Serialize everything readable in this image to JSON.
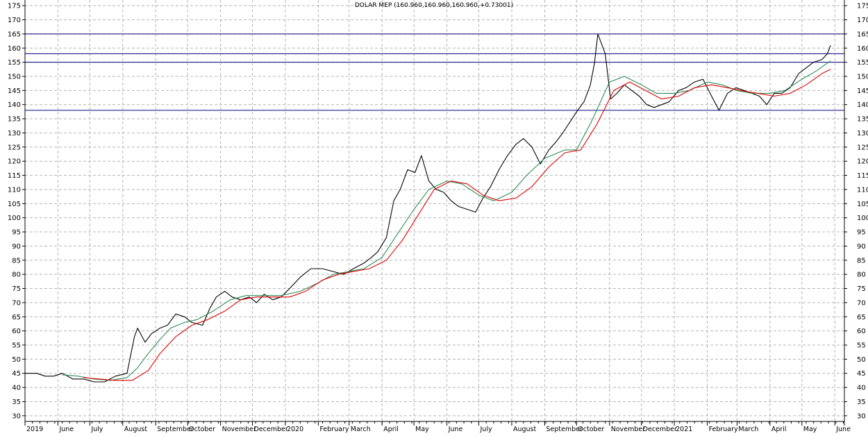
{
  "chart_data": {
    "type": "line",
    "title": "DOLAR MEP (160.960,160.960,160.960,+0.73001)",
    "ylim": [
      28,
      177
    ],
    "y_ticks": [
      30,
      35,
      40,
      45,
      50,
      55,
      60,
      65,
      70,
      75,
      80,
      85,
      90,
      95,
      100,
      105,
      110,
      115,
      120,
      125,
      130,
      135,
      140,
      145,
      150,
      155,
      160,
      165,
      170,
      175
    ],
    "x_range": [
      "2019-05-01",
      "2021-06-10"
    ],
    "grid": true,
    "x_ticks": [
      {
        "date": "2019-05-01",
        "label": "2019"
      },
      {
        "date": "2019-06-01",
        "label": "June"
      },
      {
        "date": "2019-07-01",
        "label": "July"
      },
      {
        "date": "2019-08-01",
        "label": "August"
      },
      {
        "date": "2019-09-01",
        "label": "September"
      },
      {
        "date": "2019-10-01",
        "label": "October"
      },
      {
        "date": "2019-11-01",
        "label": "November"
      },
      {
        "date": "2019-12-01",
        "label": "December"
      },
      {
        "date": "2020-01-01",
        "label": "2020"
      },
      {
        "date": "2020-02-01",
        "label": "February"
      },
      {
        "date": "2020-03-01",
        "label": "March"
      },
      {
        "date": "2020-04-01",
        "label": "April"
      },
      {
        "date": "2020-05-01",
        "label": "May"
      },
      {
        "date": "2020-06-01",
        "label": "June"
      },
      {
        "date": "2020-07-01",
        "label": "July"
      },
      {
        "date": "2020-08-01",
        "label": "August"
      },
      {
        "date": "2020-09-01",
        "label": "September"
      },
      {
        "date": "2020-10-01",
        "label": "October"
      },
      {
        "date": "2020-11-01",
        "label": "November"
      },
      {
        "date": "2020-12-01",
        "label": "December"
      },
      {
        "date": "2021-01-01",
        "label": "2021"
      },
      {
        "date": "2021-02-01",
        "label": "February"
      },
      {
        "date": "2021-03-01",
        "label": "March"
      },
      {
        "date": "2021-04-01",
        "label": "April"
      },
      {
        "date": "2021-05-01",
        "label": "May"
      },
      {
        "date": "2021-06-01",
        "label": "June"
      }
    ],
    "hlines": [
      {
        "value": 165,
        "color": "#000080"
      },
      {
        "value": 158,
        "color": "#000080"
      },
      {
        "value": 155,
        "color": "#000080"
      },
      {
        "value": 138,
        "color": "#000080"
      }
    ],
    "series": [
      {
        "color": "#000000",
        "x": [
          "2019-05-01",
          "2019-05-12",
          "2019-05-20",
          "2019-05-28",
          "2019-06-05",
          "2019-06-15",
          "2019-06-25",
          "2019-07-05",
          "2019-07-15",
          "2019-07-25",
          "2019-08-05",
          "2019-08-12",
          "2019-08-15",
          "2019-08-22",
          "2019-08-28",
          "2019-09-05",
          "2019-09-12",
          "2019-09-20",
          "2019-09-28",
          "2019-10-05",
          "2019-10-15",
          "2019-10-22",
          "2019-10-28",
          "2019-11-05",
          "2019-11-12",
          "2019-11-20",
          "2019-11-28",
          "2019-12-05",
          "2019-12-12",
          "2019-12-20",
          "2019-12-28",
          "2020-01-05",
          "2020-01-15",
          "2020-01-25",
          "2020-02-05",
          "2020-02-15",
          "2020-02-25",
          "2020-03-05",
          "2020-03-15",
          "2020-03-22",
          "2020-03-28",
          "2020-04-05",
          "2020-04-12",
          "2020-04-18",
          "2020-04-25",
          "2020-05-02",
          "2020-05-08",
          "2020-05-15",
          "2020-05-22",
          "2020-05-29",
          "2020-06-05",
          "2020-06-12",
          "2020-06-20",
          "2020-06-28",
          "2020-07-05",
          "2020-07-12",
          "2020-07-20",
          "2020-07-28",
          "2020-08-05",
          "2020-08-12",
          "2020-08-20",
          "2020-08-28",
          "2020-09-05",
          "2020-09-12",
          "2020-09-18",
          "2020-09-25",
          "2020-10-02",
          "2020-10-08",
          "2020-10-14",
          "2020-10-18",
          "2020-10-21",
          "2020-10-24",
          "2020-10-28",
          "2020-11-02",
          "2020-11-08",
          "2020-11-15",
          "2020-11-22",
          "2020-11-29",
          "2020-12-06",
          "2020-12-13",
          "2020-12-20",
          "2020-12-27",
          "2021-01-05",
          "2021-01-12",
          "2021-01-20",
          "2021-01-28",
          "2021-02-05",
          "2021-02-12",
          "2021-02-20",
          "2021-02-28",
          "2021-03-08",
          "2021-03-15",
          "2021-03-22",
          "2021-03-29",
          "2021-04-05",
          "2021-04-12",
          "2021-04-20",
          "2021-04-28",
          "2021-05-05",
          "2021-05-12",
          "2021-05-20",
          "2021-05-25",
          "2021-05-28"
        ],
        "y": [
          45,
          45,
          44,
          44,
          45,
          43,
          43,
          42,
          42,
          44,
          45,
          58,
          61,
          56,
          59,
          61,
          62,
          66,
          65,
          63,
          62,
          68,
          72,
          74,
          72,
          71,
          72,
          70,
          73,
          71,
          72,
          75,
          79,
          82,
          82,
          81,
          80,
          82,
          84,
          86,
          88,
          93,
          106,
          110,
          117,
          116,
          122,
          113,
          110,
          109,
          106,
          104,
          103,
          102,
          107,
          111,
          117,
          122,
          126,
          128,
          125,
          119,
          124,
          127,
          130,
          134,
          138,
          141,
          147,
          155,
          165,
          162,
          158,
          142,
          144,
          147,
          145,
          143,
          140,
          139,
          140,
          141,
          145,
          146,
          148,
          149,
          143,
          138,
          144,
          146,
          145,
          144,
          143,
          140,
          144,
          144,
          146,
          151,
          153,
          155,
          156,
          158,
          160.96
        ]
      },
      {
        "color": "#2e8b57",
        "x": [
          "2019-06-05",
          "2019-06-20",
          "2019-07-05",
          "2019-07-20",
          "2019-08-05",
          "2019-08-15",
          "2019-08-25",
          "2019-09-05",
          "2019-09-15",
          "2019-09-28",
          "2019-10-10",
          "2019-10-25",
          "2019-11-10",
          "2019-11-25",
          "2019-12-10",
          "2019-12-28",
          "2020-01-15",
          "2020-02-01",
          "2020-02-15",
          "2020-03-01",
          "2020-03-15",
          "2020-04-01",
          "2020-04-15",
          "2020-05-01",
          "2020-05-15",
          "2020-06-01",
          "2020-06-15",
          "2020-07-01",
          "2020-07-15",
          "2020-08-01",
          "2020-08-15",
          "2020-09-01",
          "2020-09-20",
          "2020-10-01",
          "2020-10-15",
          "2020-11-01",
          "2020-11-15",
          "2020-12-01",
          "2020-12-15",
          "2021-01-01",
          "2021-01-15",
          "2021-02-01",
          "2021-02-15",
          "2021-03-01",
          "2021-03-15",
          "2021-04-01",
          "2021-04-15",
          "2021-05-01",
          "2021-05-15",
          "2021-05-28"
        ],
        "y": [
          44.5,
          44,
          43,
          42.5,
          43.5,
          47,
          52,
          57,
          61,
          63,
          64,
          67,
          71,
          72.5,
          72.5,
          72.5,
          74,
          77,
          80,
          81,
          82,
          86,
          94,
          103,
          110,
          113,
          112,
          108,
          106,
          109,
          115,
          121,
          124,
          124,
          134,
          148,
          150,
          147,
          144,
          144,
          145,
          148,
          147,
          145,
          144,
          144,
          145,
          149,
          152,
          155.5
        ]
      },
      {
        "color": "#e00000",
        "x": [
          "2019-06-25",
          "2019-07-10",
          "2019-07-25",
          "2019-08-10",
          "2019-08-25",
          "2019-09-05",
          "2019-09-20",
          "2019-10-05",
          "2019-10-20",
          "2019-11-05",
          "2019-11-20",
          "2019-12-05",
          "2019-12-20",
          "2020-01-05",
          "2020-01-20",
          "2020-02-05",
          "2020-02-20",
          "2020-03-05",
          "2020-03-20",
          "2020-04-05",
          "2020-04-20",
          "2020-05-05",
          "2020-05-20",
          "2020-06-05",
          "2020-06-20",
          "2020-07-05",
          "2020-07-20",
          "2020-08-05",
          "2020-08-20",
          "2020-09-05",
          "2020-09-20",
          "2020-10-05",
          "2020-10-20",
          "2020-11-05",
          "2020-11-20",
          "2020-12-05",
          "2020-12-20",
          "2021-01-05",
          "2021-01-20",
          "2021-02-05",
          "2021-02-20",
          "2021-03-05",
          "2021-03-20",
          "2021-04-05",
          "2021-04-20",
          "2021-05-05",
          "2021-05-20",
          "2021-05-28"
        ],
        "y": [
          43.5,
          43,
          42.5,
          42.5,
          46,
          52,
          58,
          62,
          64,
          67,
          71,
          72,
          72,
          72,
          74,
          78,
          80,
          81,
          82,
          85,
          92,
          101,
          110,
          113,
          112,
          108,
          106,
          107,
          111,
          118,
          123,
          124,
          133,
          145,
          148,
          145,
          142,
          143,
          146,
          147,
          146,
          145,
          144,
          143,
          144,
          147,
          151,
          152.5
        ]
      }
    ]
  }
}
